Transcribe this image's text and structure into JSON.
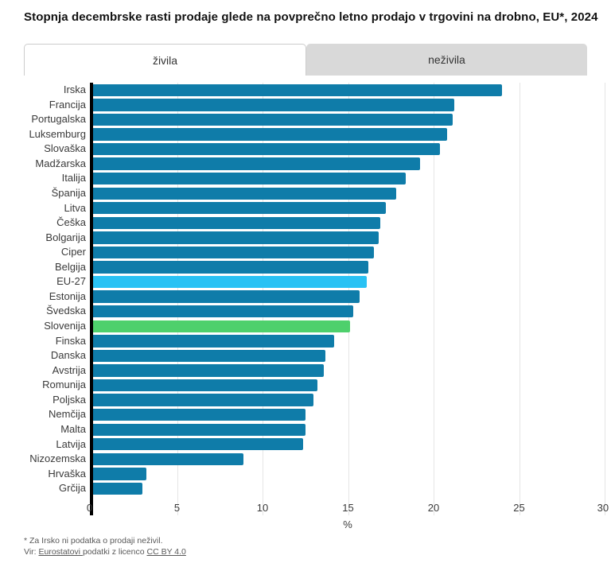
{
  "title": "Stopnja decembrske rasti prodaje glede na povprečno letno prodajo v trgovini na drobno, EU*, 2024",
  "tabs": [
    {
      "label": "živila",
      "active": true
    },
    {
      "label": "neživila",
      "active": false
    }
  ],
  "chart_data": {
    "type": "bar",
    "orientation": "horizontal",
    "categories": [
      "Irska",
      "Francija",
      "Portugalska",
      "Luksemburg",
      "Slovaška",
      "Madžarska",
      "Italija",
      "Španija",
      "Litva",
      "Češka",
      "Bolgarija",
      "Ciper",
      "Belgija",
      "EU-27",
      "Estonija",
      "Švedska",
      "Slovenija",
      "Finska",
      "Danska",
      "Avstrija",
      "Romunija",
      "Poljska",
      "Nemčija",
      "Malta",
      "Latvija",
      "Nizozemska",
      "Hrvaška",
      "Grčija"
    ],
    "values": [
      23.9,
      21.1,
      21.0,
      20.7,
      20.3,
      19.1,
      18.3,
      17.7,
      17.1,
      16.8,
      16.7,
      16.4,
      16.1,
      16.0,
      15.6,
      15.2,
      15.0,
      14.1,
      13.6,
      13.5,
      13.1,
      12.9,
      12.4,
      12.4,
      12.3,
      8.8,
      3.1,
      2.9
    ],
    "xlabel": "%",
    "xlim": [
      0,
      30
    ],
    "xticks": [
      0,
      5,
      10,
      15,
      20,
      25,
      30
    ],
    "grid": true,
    "bar_color": "#0f7ca9",
    "highlight_colors": {
      "EU-27": "#29c2f4",
      "Slovenija": "#4ed06c"
    }
  },
  "footnote": "* Za Irsko ni podatka o prodaji neživil.",
  "source": {
    "prefix": "Vir: ",
    "link_eurostat": "Eurostatovi ",
    "middle": "podatki z licenco ",
    "link_license": "CC BY 4.0"
  }
}
